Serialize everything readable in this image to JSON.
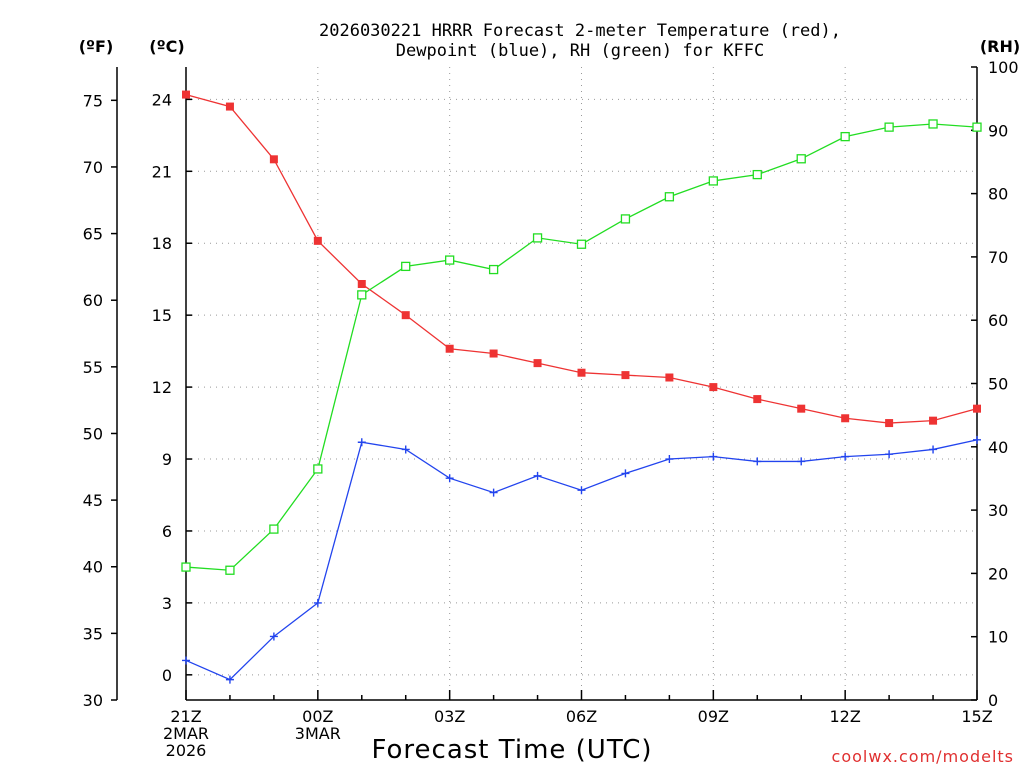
{
  "chart_data": {
    "type": "line",
    "title_line1": "2026030221 HRRR Forecast 2-meter Temperature (red),",
    "title_line2": "Dewpoint (blue), RH (green) for KFFC",
    "xlabel": "Forecast Time (UTC)",
    "credit": "coolwx.com/modelts",
    "units": {
      "fahrenheit": "(ºF)",
      "celsius": "(ºC)",
      "rh": "(RH)"
    },
    "x_hours": [
      0,
      1,
      2,
      3,
      4,
      5,
      6,
      7,
      8,
      9,
      10,
      11,
      12,
      13,
      14,
      15,
      16,
      17,
      18
    ],
    "x_ticks": [
      {
        "hour": 0,
        "lines": [
          "21Z",
          "2MAR",
          "2026"
        ]
      },
      {
        "hour": 3,
        "lines": [
          "00Z",
          "3MAR"
        ]
      },
      {
        "hour": 6,
        "lines": [
          "03Z"
        ]
      },
      {
        "hour": 9,
        "lines": [
          "06Z"
        ]
      },
      {
        "hour": 12,
        "lines": [
          "09Z"
        ]
      },
      {
        "hour": 15,
        "lines": [
          "12Z"
        ]
      },
      {
        "hour": 18,
        "lines": [
          "15Z"
        ]
      }
    ],
    "celsius_axis": {
      "min": -1.05,
      "max": 25.35,
      "ticks": [
        0,
        3,
        6,
        9,
        12,
        15,
        18,
        21,
        24
      ]
    },
    "fahrenheit_axis": {
      "min": 30,
      "max": 77.5,
      "ticks": [
        30,
        35,
        40,
        45,
        50,
        55,
        60,
        65,
        70,
        75
      ]
    },
    "rh_axis": {
      "min": 0,
      "max": 100,
      "ticks": [
        0,
        10,
        20,
        30,
        40,
        50,
        60,
        70,
        80,
        90,
        100
      ]
    },
    "series": [
      {
        "name": "Temperature",
        "axis": "celsius",
        "color": "#ee3333",
        "marker": "filled-square",
        "values": [
          24.2,
          23.7,
          21.5,
          18.1,
          16.3,
          15.0,
          13.6,
          13.4,
          13.0,
          12.6,
          12.5,
          12.4,
          12.0,
          11.5,
          11.1,
          10.7,
          10.5,
          10.6,
          11.1
        ]
      },
      {
        "name": "Dewpoint",
        "axis": "celsius",
        "color": "#2244ee",
        "marker": "plus",
        "values": [
          0.6,
          -0.2,
          1.6,
          3.0,
          9.7,
          9.4,
          8.2,
          7.6,
          8.3,
          7.7,
          8.4,
          9.0,
          9.1,
          8.9,
          8.9,
          9.1,
          9.2,
          9.4,
          9.8
        ]
      },
      {
        "name": "RH",
        "axis": "rh",
        "color": "#22dd22",
        "marker": "open-square",
        "values": [
          21,
          20.5,
          27,
          36.5,
          64,
          68.5,
          69.5,
          68,
          73,
          72,
          76,
          79.5,
          82,
          83,
          85.5,
          89,
          90.5,
          91,
          90.5
        ]
      }
    ]
  }
}
